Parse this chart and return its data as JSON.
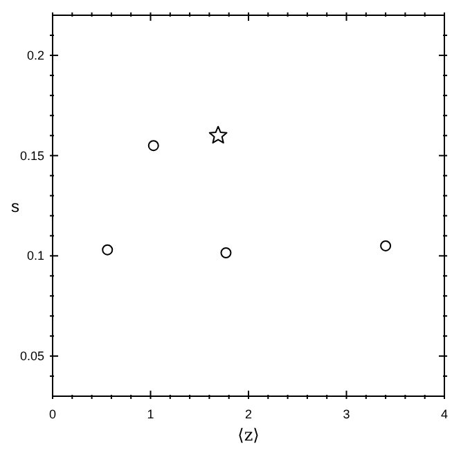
{
  "chart_data": {
    "type": "scatter",
    "xlabel": "⟨z⟩",
    "ylabel": "s",
    "xlim": [
      0,
      4
    ],
    "ylim": [
      0.03,
      0.22
    ],
    "xticks": [
      0,
      {
        "value": 0.2,
        "label": null
      },
      {
        "value": 0.4,
        "label": null
      },
      {
        "value": 0.6,
        "label": null
      },
      {
        "value": 0.8,
        "label": null
      },
      1,
      {
        "value": 1.2,
        "label": null
      },
      {
        "value": 1.4,
        "label": null
      },
      {
        "value": 1.6,
        "label": null
      },
      {
        "value": 1.8,
        "label": null
      },
      2,
      {
        "value": 2.2,
        "label": null
      },
      {
        "value": 2.4,
        "label": null
      },
      {
        "value": 2.6,
        "label": null
      },
      {
        "value": 2.8,
        "label": null
      },
      3,
      {
        "value": 3.2,
        "label": null
      },
      {
        "value": 3.4,
        "label": null
      },
      {
        "value": 3.6,
        "label": null
      },
      {
        "value": 3.8,
        "label": null
      },
      4
    ],
    "yticks": [
      {
        "value": 0.04,
        "label": null
      },
      0.05,
      {
        "value": 0.06,
        "label": null
      },
      {
        "value": 0.07,
        "label": null
      },
      {
        "value": 0.08,
        "label": null
      },
      {
        "value": 0.09,
        "label": null
      },
      0.1,
      {
        "value": 0.11,
        "label": null
      },
      {
        "value": 0.12,
        "label": null
      },
      {
        "value": 0.13,
        "label": null
      },
      {
        "value": 0.14,
        "label": null
      },
      0.15,
      {
        "value": 0.16,
        "label": null
      },
      {
        "value": 0.17,
        "label": null
      },
      {
        "value": 0.18,
        "label": null
      },
      {
        "value": 0.19,
        "label": null
      },
      0.2,
      {
        "value": 0.21,
        "label": null
      }
    ],
    "series": [
      {
        "color": "#000000",
        "marker": "circle",
        "x": [
          0.56,
          1.03,
          1.77,
          3.4
        ],
        "values": [
          0.103,
          0.155,
          0.1015,
          0.105
        ]
      },
      {
        "color": "#000000",
        "marker": "star",
        "x": [
          1.69
        ],
        "values": [
          0.16
        ]
      }
    ]
  }
}
